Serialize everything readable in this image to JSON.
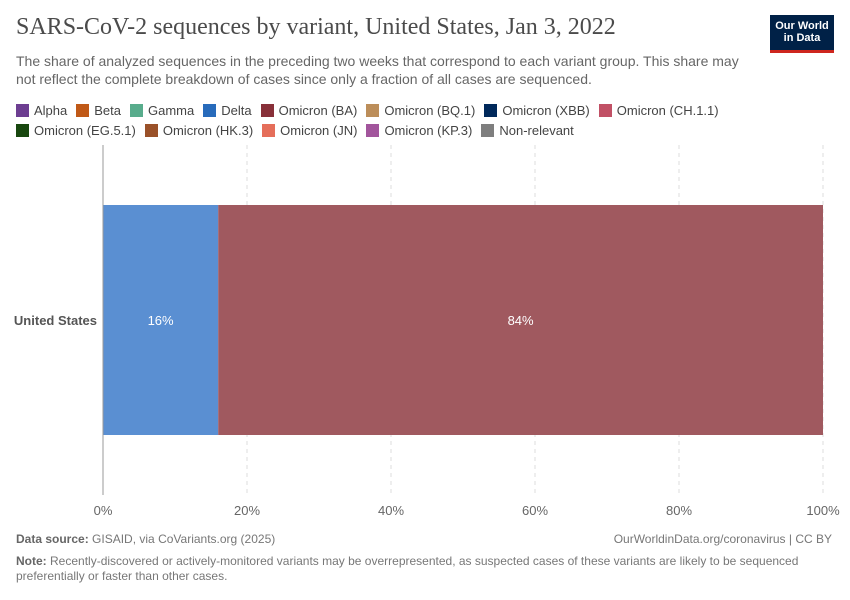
{
  "title": "SARS-CoV-2 sequences by variant, United States, Jan 3, 2022",
  "subtitle": "The share of analyzed sequences in the preceding two weeks that correspond to each variant group. This share may not reflect the complete breakdown of cases since only a fraction of all cases are sequenced.",
  "logo": {
    "line1": "Our World",
    "line2": "in Data"
  },
  "legend": [
    {
      "label": "Alpha",
      "color": "#6d3e91"
    },
    {
      "label": "Beta",
      "color": "#c05917"
    },
    {
      "label": "Gamma",
      "color": "#58ac8c"
    },
    {
      "label": "Delta",
      "color": "#286bbb"
    },
    {
      "label": "Omicron (BA)",
      "color": "#883039"
    },
    {
      "label": "Omicron (BQ.1)",
      "color": "#bc8e5a"
    },
    {
      "label": "Omicron (XBB)",
      "color": "#00295b"
    },
    {
      "label": "Omicron (CH.1.1)",
      "color": "#c15065"
    },
    {
      "label": "Omicron (EG.5.1)",
      "color": "#18470f"
    },
    {
      "label": "Omicron (HK.3)",
      "color": "#9a5129"
    },
    {
      "label": "Omicron (JN)",
      "color": "#e56e5a"
    },
    {
      "label": "Omicron (KP.3)",
      "color": "#a2559c"
    },
    {
      "label": "Non-relevant",
      "color": "#7e7e7e"
    }
  ],
  "chart_data": {
    "type": "bar",
    "orientation": "horizontal",
    "stacked": true,
    "categories": [
      "United States"
    ],
    "series": [
      {
        "name": "Delta",
        "values": [
          16
        ],
        "color": "#5a8fd2",
        "label": "16%"
      },
      {
        "name": "Omicron (BA)",
        "values": [
          84
        ],
        "color": "#a0595f",
        "label": "84%"
      }
    ],
    "xlim": [
      0,
      100
    ],
    "xticks": [
      "0%",
      "20%",
      "40%",
      "60%",
      "80%",
      "100%"
    ],
    "grid": true
  },
  "footer": {
    "source_label": "Data source:",
    "source": "GISAID, via CoVariants.org (2025)",
    "site": "OurWorldinData.org/coronavirus | CC BY",
    "note_label": "Note:",
    "note": "Recently-discovered or actively-monitored variants may be overrepresented, as suspected cases of these variants are likely to be sequenced preferentially or faster than other cases."
  }
}
